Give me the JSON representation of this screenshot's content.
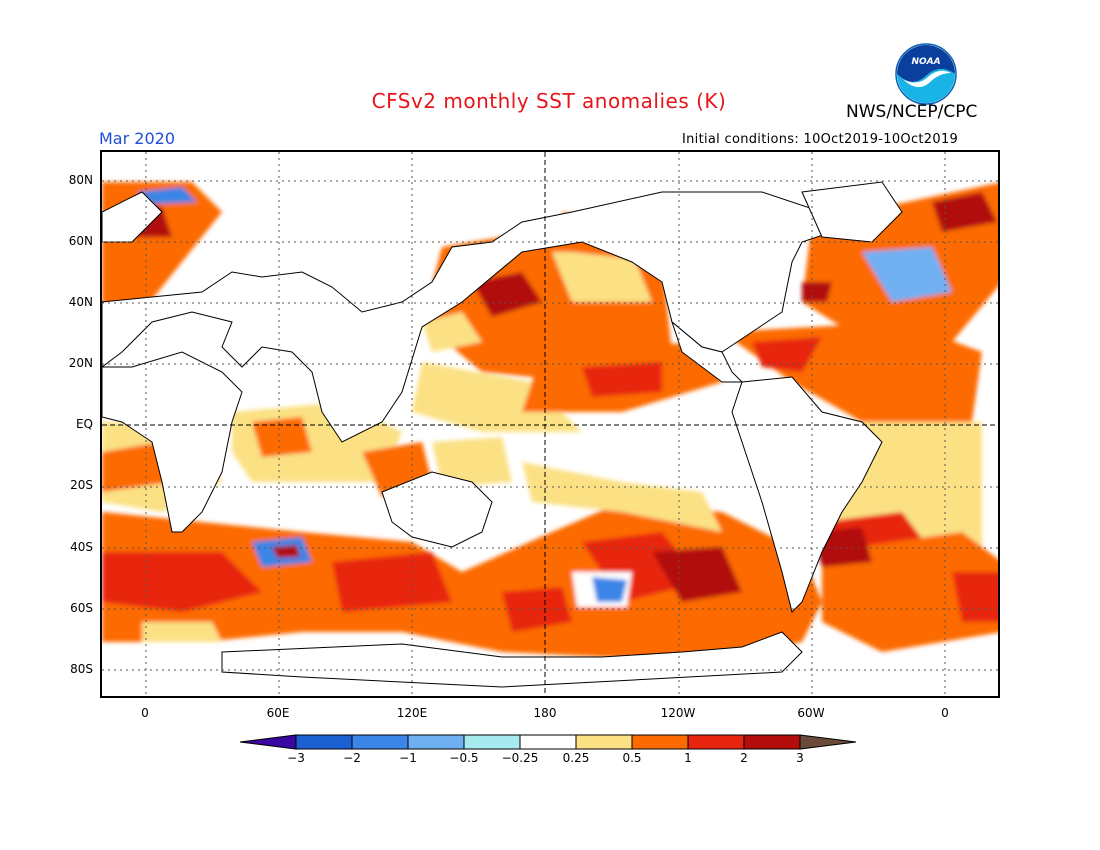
{
  "header": {
    "title": "CFSv2 monthly SST anomalies (K)",
    "agency": "NWS/NCEP/CPC",
    "logo_text": "NOAA",
    "valid_month": "Mar 2020",
    "initial_conditions": "Initial conditions: 10Oct2019-10Oct2019"
  },
  "axes": {
    "lat_labels": [
      "80N",
      "60N",
      "40N",
      "20N",
      "EQ",
      "20S",
      "40S",
      "60S",
      "80S"
    ],
    "lon_labels": [
      "0",
      "60E",
      "120E",
      "180",
      "120W",
      "60W",
      "0"
    ]
  },
  "colorbar": {
    "labels": [
      "-3",
      "-2",
      "-1",
      "-0.5",
      "-0.25",
      "0.25",
      "0.5",
      "1",
      "2",
      "3"
    ],
    "colors": [
      "#3a07a3",
      "#1c5fd0",
      "#3a85e6",
      "#6fb0f2",
      "#a8ebef",
      "#ffffff",
      "#fbe184",
      "#fc6a00",
      "#e8260f",
      "#b20c0c",
      "#6b4a3a"
    ]
  }
}
